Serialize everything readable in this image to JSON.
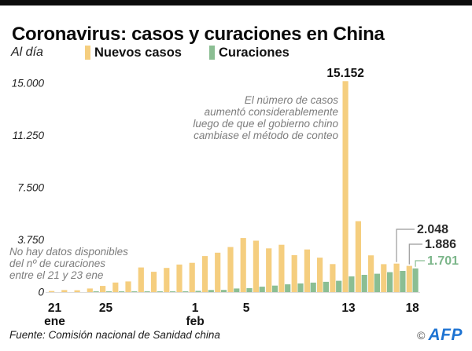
{
  "header": {
    "title": "Coronavirus: casos y curaciones en China"
  },
  "legend": {
    "unit_label": "Al día",
    "series": [
      {
        "label": "Nuevos casos",
        "color": "#F5CE7F"
      },
      {
        "label": "Curaciones",
        "color": "#8BBE93"
      }
    ]
  },
  "annotations": {
    "peak_label": "15.152",
    "method_note_lines": [
      "El número de casos",
      "aumentó considerablemente",
      "luego de que el gobierno chino",
      "cambiase el método de conteo"
    ],
    "no_data_note_lines": [
      "No hay datos disponibles",
      "del nº de curaciones",
      "entre el 21 y 23 ene"
    ],
    "callouts": [
      {
        "label": "2.048",
        "color": "#2b2b2b",
        "line_color": "#9a9a9a"
      },
      {
        "label": "1.886",
        "color": "#2b2b2b",
        "line_color": "#9a9a9a"
      },
      {
        "label": "1.701",
        "color": "#7cb68a",
        "line_color": "#8BBE93"
      }
    ]
  },
  "footer": {
    "source": "Fuente: Comisión nacional de Sanidad china",
    "copyright": "©",
    "logo": "AFP"
  },
  "chart_data": {
    "type": "bar",
    "title": "Coronavirus: casos y curaciones en China",
    "subtitle_unit": "Al día",
    "x": [
      "21 ene",
      "22 ene",
      "23 ene",
      "24 ene",
      "25 ene",
      "26 ene",
      "27 ene",
      "28 ene",
      "29 ene",
      "30 ene",
      "31 ene",
      "1 feb",
      "2 feb",
      "3 feb",
      "4 feb",
      "5 feb",
      "6 feb",
      "7 feb",
      "8 feb",
      "9 feb",
      "10 feb",
      "11 feb",
      "12 feb",
      "13 feb",
      "14 feb",
      "15 feb",
      "16 feb",
      "17 feb",
      "18 feb"
    ],
    "series": [
      {
        "id": "nuevos-casos",
        "name": "Nuevos casos",
        "color": "#F5CE7F",
        "values": [
          77,
          149,
          131,
          259,
          444,
          688,
          769,
          1771,
          1459,
          1737,
          1982,
          2102,
          2590,
          2829,
          3235,
          3887,
          3694,
          3143,
          3399,
          2656,
          3062,
          2478,
          2015,
          15152,
          5090,
          2641,
          2009,
          2048,
          1886
        ]
      },
      {
        "id": "curaciones",
        "name": "Curaciones",
        "color": "#8BBE93",
        "values": [
          null,
          null,
          null,
          10,
          15,
          20,
          25,
          30,
          45,
          50,
          60,
          90,
          150,
          160,
          260,
          280,
          390,
          470,
          560,
          620,
          680,
          740,
          810,
          1130,
          1240,
          1320,
          1430,
          1520,
          1701
        ]
      }
    ],
    "ylim": [
      0,
      15000
    ],
    "yticks": [
      0,
      3750,
      7500,
      11250,
      15000
    ],
    "ytick_labels": [
      "0",
      "3.750",
      "7.500",
      "11.250",
      "15.000"
    ],
    "xticks": [
      {
        "index": 0,
        "line1": "21",
        "line2": "ene"
      },
      {
        "index": 4,
        "line1": "25",
        "line2": ""
      },
      {
        "index": 11,
        "line1": "1",
        "line2": "feb"
      },
      {
        "index": 15,
        "line1": "5",
        "line2": ""
      },
      {
        "index": 23,
        "line1": "13",
        "line2": ""
      },
      {
        "index": 28,
        "line1": "18",
        "line2": ""
      }
    ],
    "grid": false,
    "legend_position": "top",
    "annotated_values": {
      "peak": 15152,
      "feb17_casos": 2048,
      "feb18_casos": 1886,
      "feb18_curaciones": 1701
    }
  }
}
